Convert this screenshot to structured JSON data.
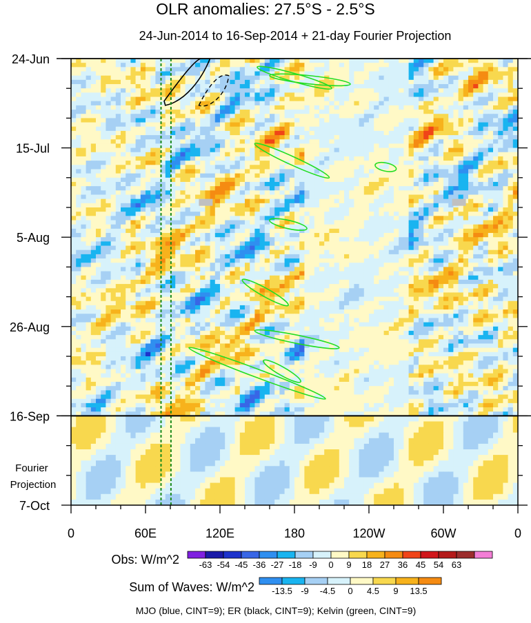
{
  "chart_data": {
    "type": "heatmap",
    "title": "OLR anomalies: 27.5°S - 2.5°S",
    "subtitle": "24-Jun-2014 to 16-Sep-2014 + 21-day Fourier Projection",
    "xlabel": "",
    "ylabel": "",
    "x_tick_labels": [
      "0",
      "60E",
      "120E",
      "180",
      "120W",
      "60W",
      "0"
    ],
    "x_ticks_deg": [
      0,
      60,
      120,
      180,
      240,
      300,
      360
    ],
    "xlim_deg": [
      0,
      360
    ],
    "y_tick_labels": [
      "24-Jun",
      "15-Jul",
      "5-Aug",
      "26-Aug",
      "16-Sep",
      "7-Oct"
    ],
    "ylim": [
      "24-Jun-2014",
      "7-Oct-2014"
    ],
    "observation_end": "16-Sep-2014",
    "projection_label": "Fourier\nProjection",
    "obs_colorbar": {
      "label": "Obs: W/m^2",
      "levels": [
        "-63",
        "-54",
        "-45",
        "-36",
        "-27",
        "-18",
        "-9",
        "0",
        "9",
        "18",
        "27",
        "36",
        "45",
        "54",
        "63"
      ],
      "colors": [
        "#7f20e0",
        "#1a1aa8",
        "#1d33cc",
        "#3866e6",
        "#2f8ff0",
        "#19b4f0",
        "#a6d0f4",
        "#d7f2fb",
        "#fff9c6",
        "#f8d84e",
        "#f7b21c",
        "#f58b12",
        "#f04418",
        "#d1161b",
        "#b41a1a",
        "#9c2d2d",
        "#f37ed6"
      ]
    },
    "waves_colorbar": {
      "label": "Sum of Waves: W/m^2",
      "levels": [
        "-13.5",
        "-9",
        "-4.5",
        "0",
        "4.5",
        "9",
        "13.5"
      ],
      "colors": [
        "#2f8ff0",
        "#19b4f0",
        "#a6d0f4",
        "#d7f2fb",
        "#fff9c6",
        "#f8d84e",
        "#f7b21c",
        "#f58b12"
      ]
    },
    "footer_note": "MJO (blue, CINT=9); ER (black, CINT=9); Kelvin (green, CINT=9)",
    "colors": {
      "mjo_contour": "#1a1ad8",
      "er_contour": "#000000",
      "kelvin_contour": "#22dd22",
      "reference_lines": "#1a8a1a",
      "missing_data": "#c0c0c0"
    }
  }
}
